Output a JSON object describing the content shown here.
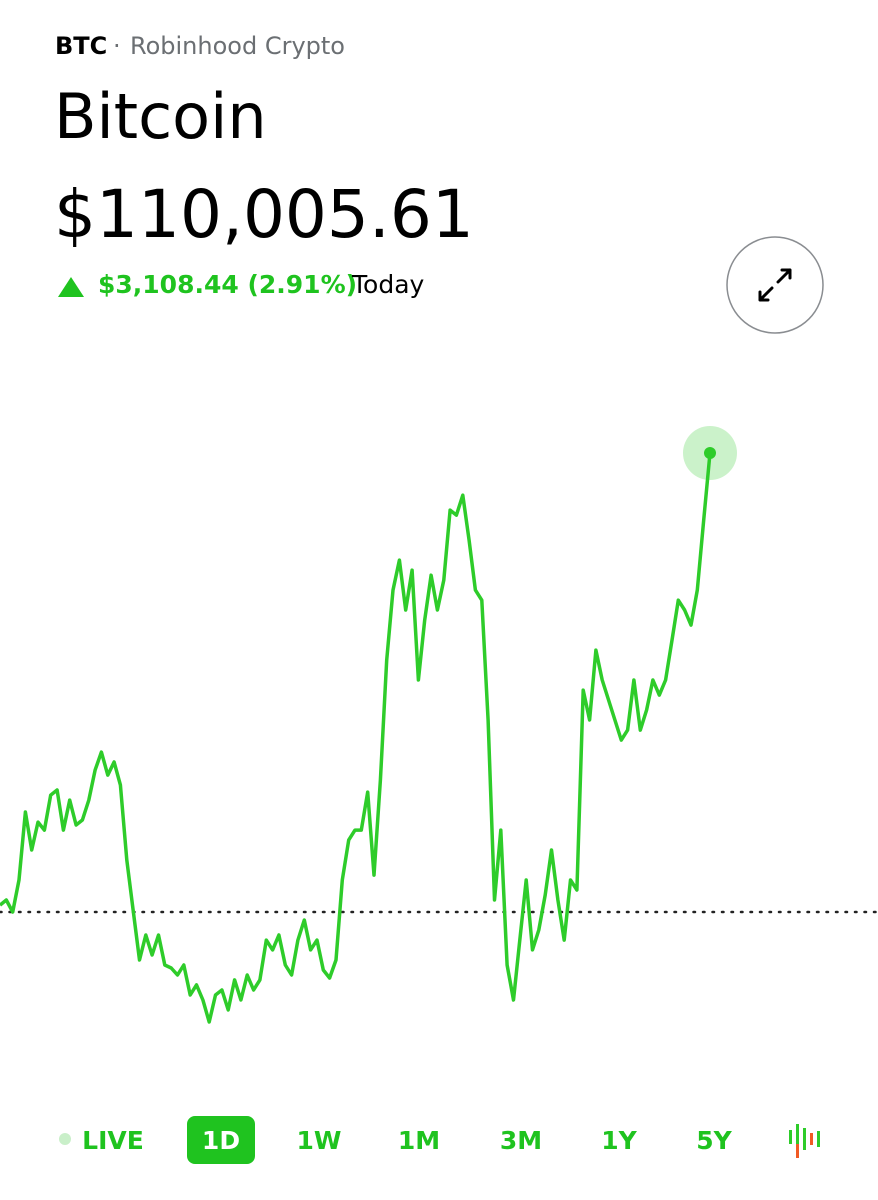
{
  "header": {
    "symbol": "BTC",
    "separator": "·",
    "source": "Robinhood Crypto",
    "name": "Bitcoin",
    "price": "$110,005.61",
    "change": "$3,108.44 (2.91%)",
    "period": "Today"
  },
  "chart_data": {
    "type": "line",
    "color": "#2ecc2a",
    "baseline": 106897,
    "values": [
      106944,
      106978,
      106897,
      107114,
      107574,
      107317,
      107506,
      107452,
      107689,
      107723,
      107452,
      107655,
      107486,
      107520,
      107655,
      107858,
      107980,
      107824,
      107913,
      107757,
      107249,
      106911,
      106572,
      106741,
      106606,
      106741,
      106538,
      106518,
      106470,
      106538,
      106335,
      106403,
      106301,
      106152,
      106335,
      106369,
      106234,
      106437,
      106301,
      106470,
      106369,
      106437,
      106707,
      106640,
      106741,
      106538,
      106470,
      106707,
      106843,
      106640,
      106707,
      106504,
      106450,
      106572,
      107114,
      107384,
      107452,
      107452,
      107709,
      107147,
      107791,
      108603,
      109077,
      109280,
      108942,
      109212,
      108468,
      108874,
      109178,
      108942,
      109145,
      109619,
      109585,
      109720,
      109415,
      109077,
      109009,
      108197,
      106978,
      107452,
      106538,
      106301,
      106707,
      107114,
      106640,
      106775,
      107012,
      107317,
      106978,
      106707,
      107114,
      107046,
      108400,
      108197,
      108671,
      108468,
      108332,
      108197,
      108061,
      108129,
      108468,
      108129,
      108265,
      108468,
      108366,
      108468,
      108738,
      109009,
      108942,
      108840,
      109077,
      109551,
      110005.61
    ]
  },
  "ranges": [
    "LIVE",
    "1D",
    "1W",
    "1M",
    "3M",
    "1Y",
    "5Y"
  ],
  "selected": 1
}
